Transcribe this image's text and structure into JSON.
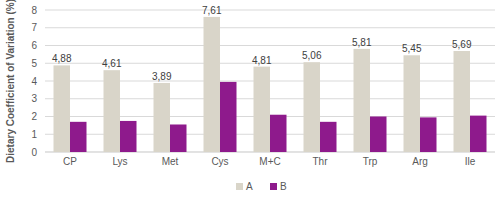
{
  "chart_data": {
    "type": "bar",
    "y_label": "Dietary Coefficient of Variation (%)",
    "categories": [
      "CP",
      "Lys",
      "Met",
      "Cys",
      "M+C",
      "Thr",
      "Trp",
      "Arg",
      "Ile"
    ],
    "series": [
      {
        "name": "A",
        "color": "#d9d5c9",
        "values": [
          4.88,
          4.61,
          3.89,
          7.61,
          4.81,
          5.06,
          5.81,
          5.45,
          5.69
        ],
        "value_labels": [
          "4,88",
          "4,61",
          "3,89",
          "7,61",
          "4,81",
          "5,06",
          "5,81",
          "5,45",
          "5,69"
        ]
      },
      {
        "name": "B",
        "color": "#8e1a8c",
        "values": [
          1.7,
          1.75,
          1.55,
          3.95,
          2.1,
          1.7,
          2.0,
          1.95,
          2.05
        ]
      }
    ],
    "ylim": [
      0,
      8
    ],
    "yticks": [
      0,
      1,
      2,
      3,
      4,
      5,
      6,
      7,
      8
    ],
    "grid": true,
    "legend": "bottom",
    "data_labels": true
  }
}
